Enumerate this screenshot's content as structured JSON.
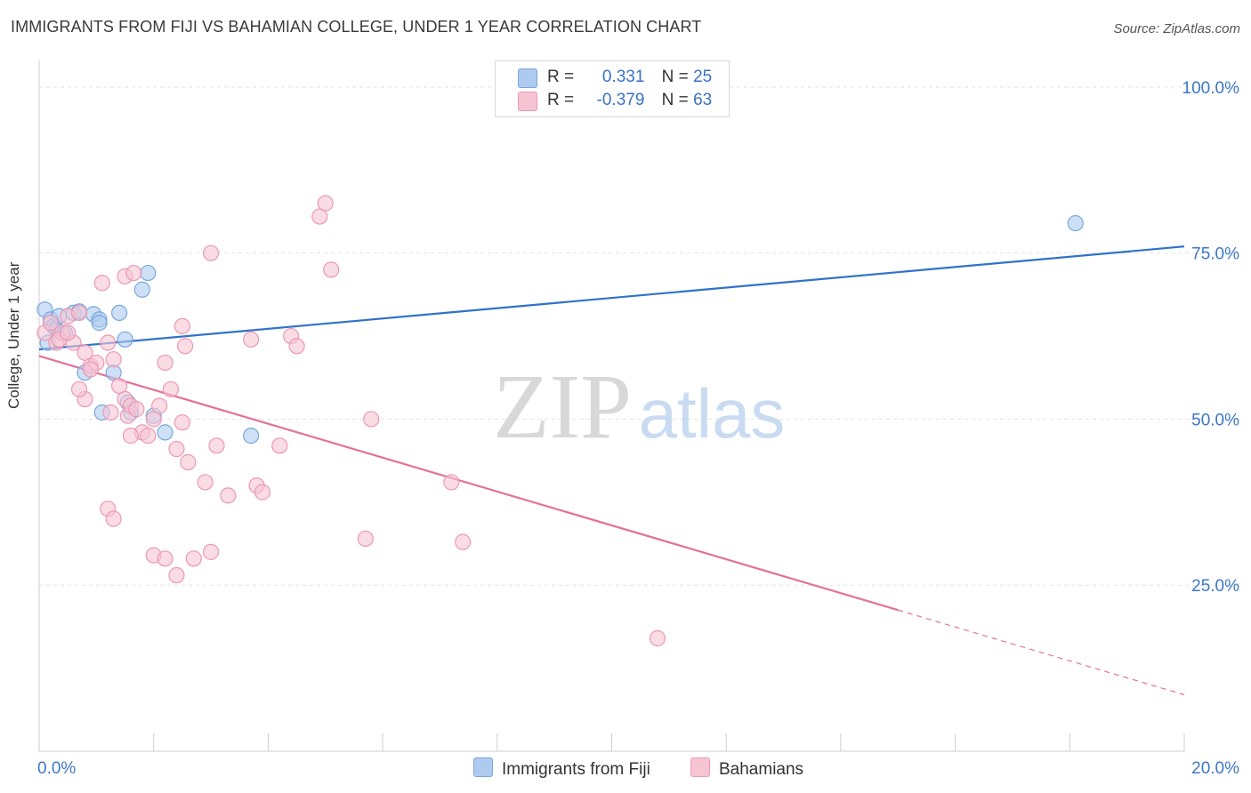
{
  "title": "IMMIGRANTS FROM FIJI VS BAHAMIAN COLLEGE, UNDER 1 YEAR CORRELATION CHART",
  "source": "Source: ZipAtlas.com",
  "watermark": {
    "zip": "ZIP",
    "atlas": "atlas"
  },
  "legend": {
    "fiji": {
      "r_label": "R =",
      "r_value": "0.331",
      "n_label": "N =",
      "n_value": "25"
    },
    "bahamians": {
      "r_label": "R =",
      "r_value": "-0.379",
      "n_label": "N =",
      "n_value": "63"
    }
  },
  "colors": {
    "fiji_fill": "#aecbef",
    "fiji_stroke": "#7aa6df",
    "fiji_line": "#2f72c9",
    "bah_fill": "#f6c4d3",
    "bah_stroke": "#ec98b3",
    "bah_line": "#e4709a",
    "axis_text": "#3d78c6",
    "grid": "#e4e4e4"
  },
  "chart_data": {
    "type": "scatter",
    "title": "IMMIGRANTS FROM FIJI VS BAHAMIAN COLLEGE, UNDER 1 YEAR CORRELATION CHART",
    "xlabel": "",
    "ylabel": "College, Under 1 year",
    "xlim": [
      0,
      20
    ],
    "ylim": [
      0,
      104
    ],
    "x_tick_labels": [
      {
        "value": 0,
        "label": "0.0%"
      },
      {
        "value": 20,
        "label": "20.0%"
      }
    ],
    "y_tick_labels": [
      {
        "value": 100,
        "label": "100.0%"
      },
      {
        "value": 75,
        "label": "75.0%"
      },
      {
        "value": 50,
        "label": "50.0%"
      },
      {
        "value": 25,
        "label": "25.0%"
      }
    ],
    "series": [
      {
        "name": "Immigrants from Fiji",
        "key": "fiji",
        "points": [
          [
            0.1,
            66.5
          ],
          [
            0.2,
            65.0
          ],
          [
            0.25,
            64.0
          ],
          [
            0.3,
            63.5
          ],
          [
            0.35,
            65.5
          ],
          [
            0.45,
            63.0
          ],
          [
            0.6,
            66.0
          ],
          [
            0.7,
            66.2
          ],
          [
            0.8,
            57.0
          ],
          [
            0.95,
            65.8
          ],
          [
            1.05,
            65.0
          ],
          [
            1.1,
            51.0
          ],
          [
            1.05,
            64.5
          ],
          [
            1.3,
            57.0
          ],
          [
            1.4,
            66.0
          ],
          [
            1.5,
            62.0
          ],
          [
            1.55,
            52.5
          ],
          [
            1.6,
            51.0
          ],
          [
            1.8,
            69.5
          ],
          [
            1.9,
            72.0
          ],
          [
            2.0,
            50.5
          ],
          [
            2.2,
            48.0
          ],
          [
            3.7,
            47.5
          ],
          [
            18.1,
            79.5
          ],
          [
            0.15,
            61.5
          ]
        ],
        "trend": {
          "x": [
            0,
            20
          ],
          "y": [
            60.5,
            76.0
          ],
          "dashed_from": null
        }
      },
      {
        "name": "Bahamians",
        "key": "bahamians",
        "points": [
          [
            0.1,
            63.0
          ],
          [
            0.2,
            64.5
          ],
          [
            0.3,
            61.5
          ],
          [
            0.4,
            63.0
          ],
          [
            0.5,
            65.5
          ],
          [
            0.6,
            61.5
          ],
          [
            0.7,
            66.0
          ],
          [
            0.8,
            60.0
          ],
          [
            0.9,
            58.0
          ],
          [
            1.0,
            58.5
          ],
          [
            1.1,
            70.5
          ],
          [
            1.2,
            61.5
          ],
          [
            1.3,
            59.0
          ],
          [
            1.4,
            55.0
          ],
          [
            1.5,
            53.0
          ],
          [
            1.55,
            50.5
          ],
          [
            1.6,
            52.0
          ],
          [
            1.7,
            51.5
          ],
          [
            1.8,
            48.0
          ],
          [
            1.9,
            47.5
          ],
          [
            2.0,
            50.0
          ],
          [
            2.1,
            52.0
          ],
          [
            2.2,
            58.5
          ],
          [
            2.3,
            54.5
          ],
          [
            2.4,
            45.5
          ],
          [
            2.5,
            49.5
          ],
          [
            1.5,
            71.5
          ],
          [
            1.65,
            72.0
          ],
          [
            2.5,
            64.0
          ],
          [
            2.55,
            61.0
          ],
          [
            2.6,
            43.5
          ],
          [
            2.9,
            40.5
          ],
          [
            3.0,
            75.0
          ],
          [
            3.1,
            46.0
          ],
          [
            3.3,
            38.5
          ],
          [
            3.7,
            62.0
          ],
          [
            3.8,
            40.0
          ],
          [
            3.9,
            39.0
          ],
          [
            4.2,
            46.0
          ],
          [
            4.4,
            62.5
          ],
          [
            4.5,
            61.0
          ],
          [
            4.9,
            80.5
          ],
          [
            5.0,
            82.5
          ],
          [
            5.1,
            72.5
          ],
          [
            5.8,
            50.0
          ],
          [
            5.7,
            32.0
          ],
          [
            7.2,
            40.5
          ],
          [
            7.4,
            31.5
          ],
          [
            10.8,
            17.0
          ],
          [
            1.2,
            36.5
          ],
          [
            1.3,
            35.0
          ],
          [
            2.0,
            29.5
          ],
          [
            2.2,
            29.0
          ],
          [
            2.4,
            26.5
          ],
          [
            2.7,
            29.0
          ],
          [
            3.0,
            30.0
          ],
          [
            0.35,
            62.0
          ],
          [
            0.5,
            63.0
          ],
          [
            0.9,
            57.5
          ],
          [
            1.25,
            51.0
          ],
          [
            1.6,
            47.5
          ],
          [
            0.8,
            53.0
          ],
          [
            0.7,
            54.5
          ]
        ],
        "trend": {
          "x": [
            0,
            20
          ],
          "y": [
            59.5,
            8.5
          ],
          "dashed_from": 15.0
        }
      }
    ]
  },
  "bottom_legend": {
    "fiji": "Immigrants from Fiji",
    "bahamians": "Bahamians"
  }
}
